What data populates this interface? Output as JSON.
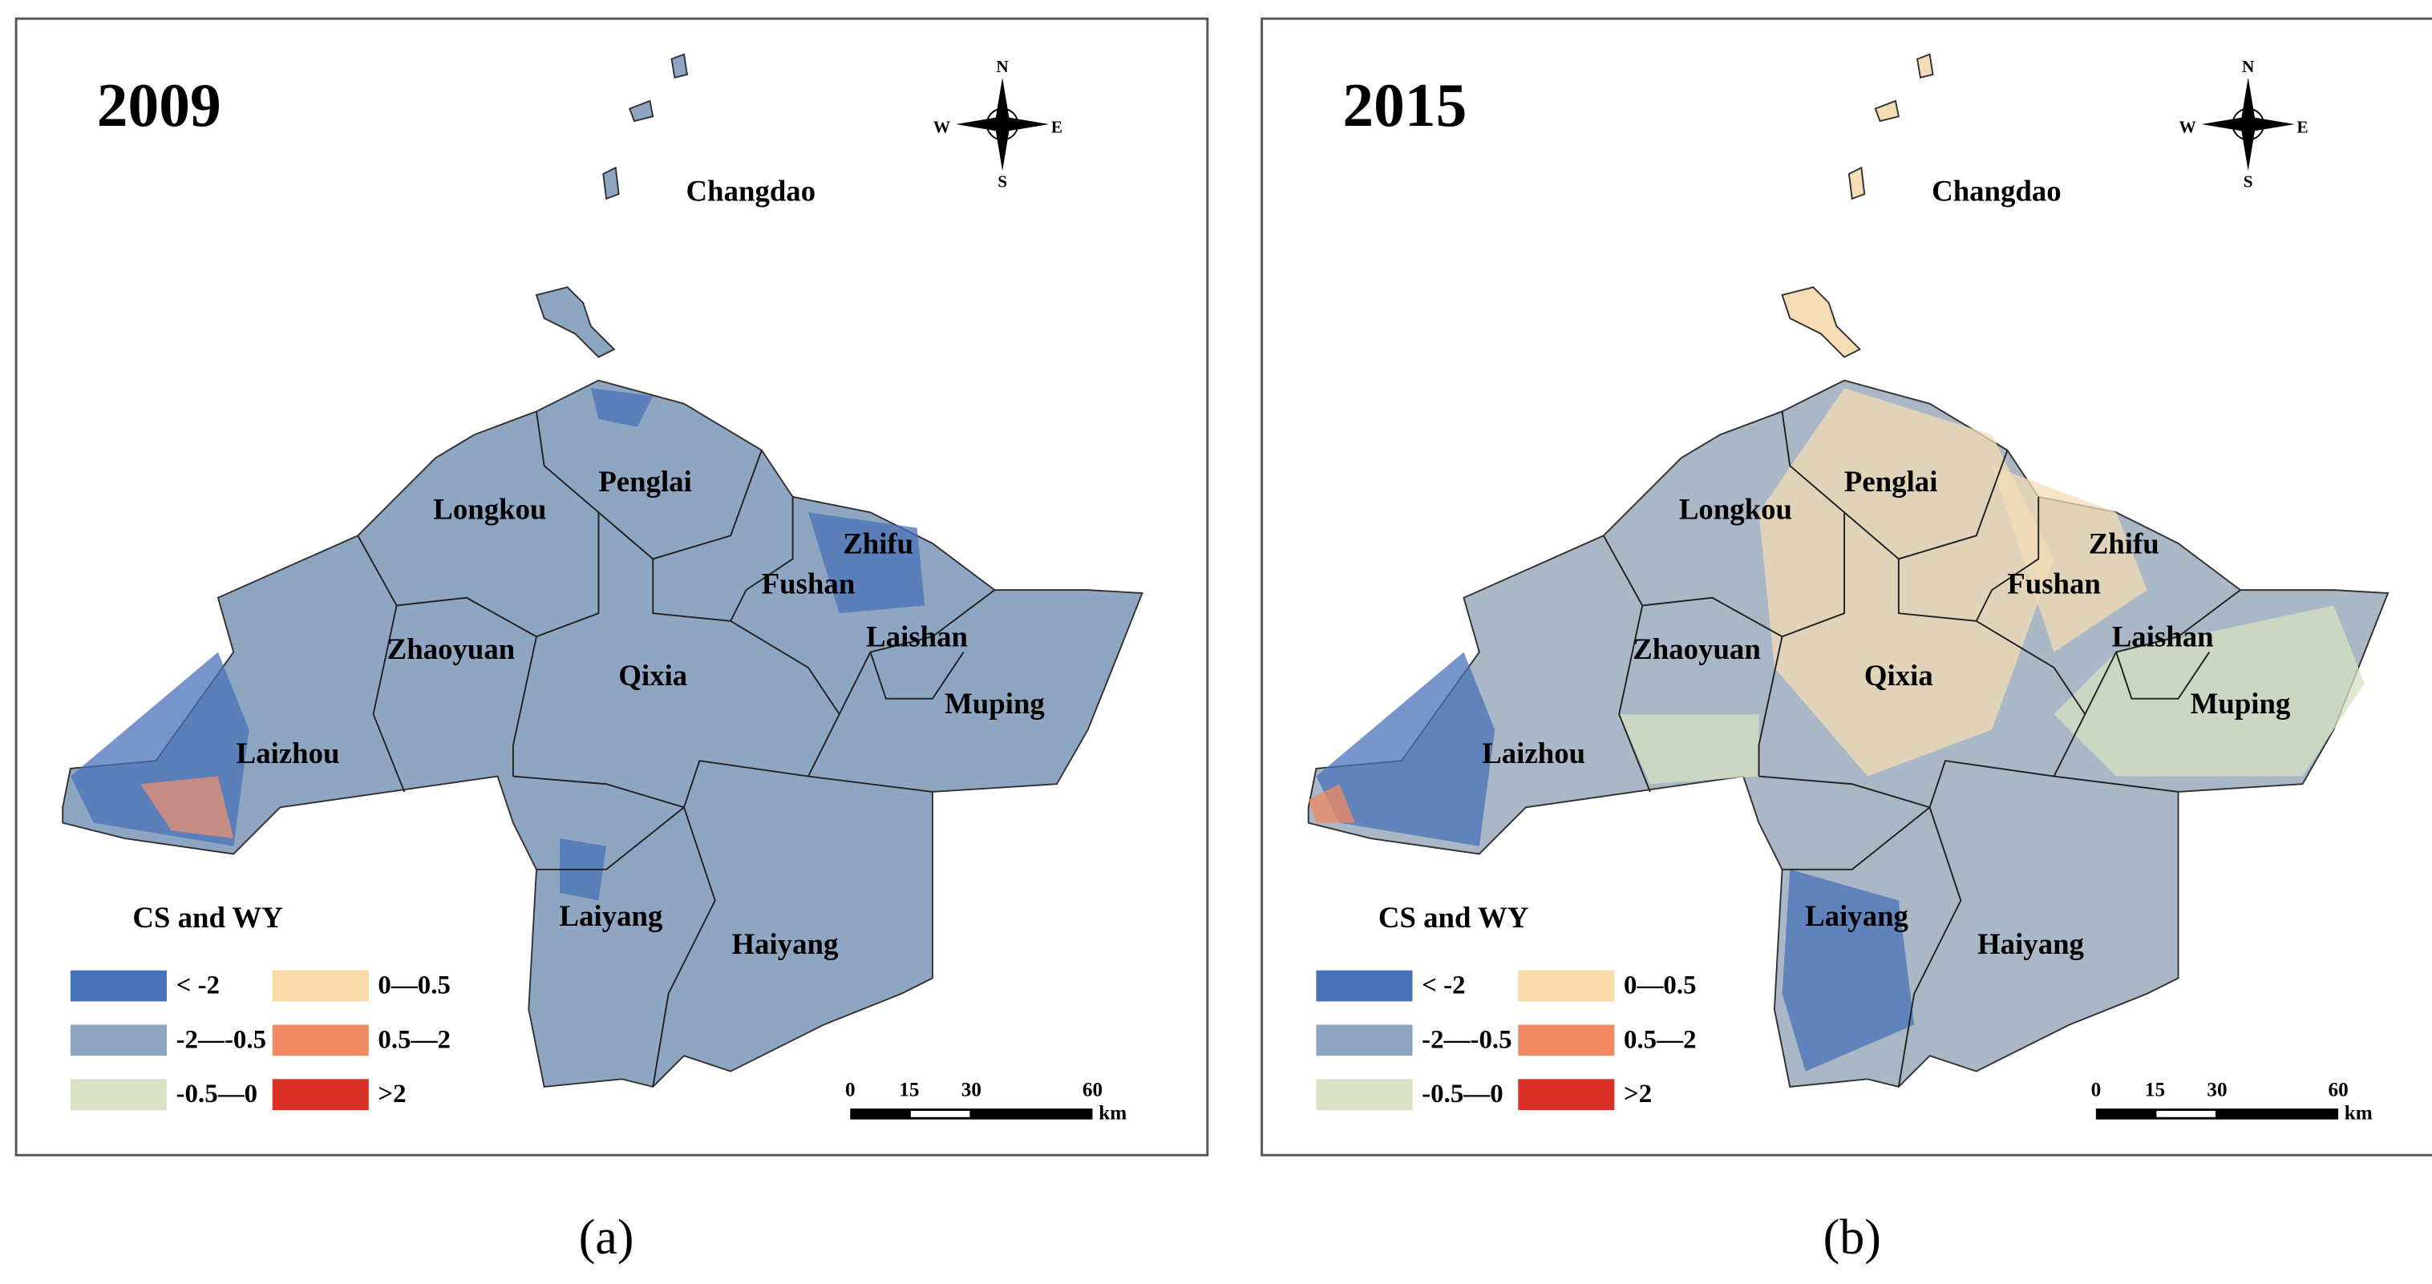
{
  "panels": [
    {
      "year": "2009",
      "caption": "(a)",
      "regions": [
        "Changdao",
        "Penglai",
        "Longkou",
        "Zhifu",
        "Fushan",
        "Laishan",
        "Zhaoyuan",
        "Qixia",
        "Muping",
        "Laizhou",
        "Laiyang",
        "Haiyang"
      ],
      "compass": {
        "n": "N",
        "s": "S",
        "w": "W",
        "e": "E"
      },
      "legend": {
        "title": "CS and WY",
        "items": [
          {
            "label": "< -2",
            "color": "#4a72b8"
          },
          {
            "label": "-2—-0.5",
            "color": "#8fa6c2"
          },
          {
            "label": "-0.5—0",
            "color": "#d8e2c2"
          },
          {
            "label": "0—0.5",
            "color": "#f8d9a8"
          },
          {
            "label": "0.5—2",
            "color": "#f08a62"
          },
          {
            "label": ">2",
            "color": "#d93028"
          }
        ]
      },
      "scale_bar": {
        "ticks": [
          "0",
          "15",
          "30",
          "60"
        ],
        "unit": "km"
      }
    },
    {
      "year": "2015",
      "caption": "(b)",
      "regions": [
        "Changdao",
        "Penglai",
        "Longkou",
        "Zhifu",
        "Fushan",
        "Laishan",
        "Zhaoyuan",
        "Qixia",
        "Muping",
        "Laizhou",
        "Laiyang",
        "Haiyang"
      ],
      "compass": {
        "n": "N",
        "s": "S",
        "w": "W",
        "e": "E"
      },
      "legend": {
        "title": "CS and WY",
        "items": [
          {
            "label": "< -2",
            "color": "#4a72b8"
          },
          {
            "label": "-2—-0.5",
            "color": "#8fa6c2"
          },
          {
            "label": "-0.5—0",
            "color": "#d8e2c2"
          },
          {
            "label": "0—0.5",
            "color": "#f8d9a8"
          },
          {
            "label": "0.5—2",
            "color": "#f08a62"
          },
          {
            "label": ">2",
            "color": "#d93028"
          }
        ]
      },
      "scale_bar": {
        "ticks": [
          "0",
          "15",
          "30",
          "60"
        ],
        "unit": "km"
      }
    }
  ]
}
